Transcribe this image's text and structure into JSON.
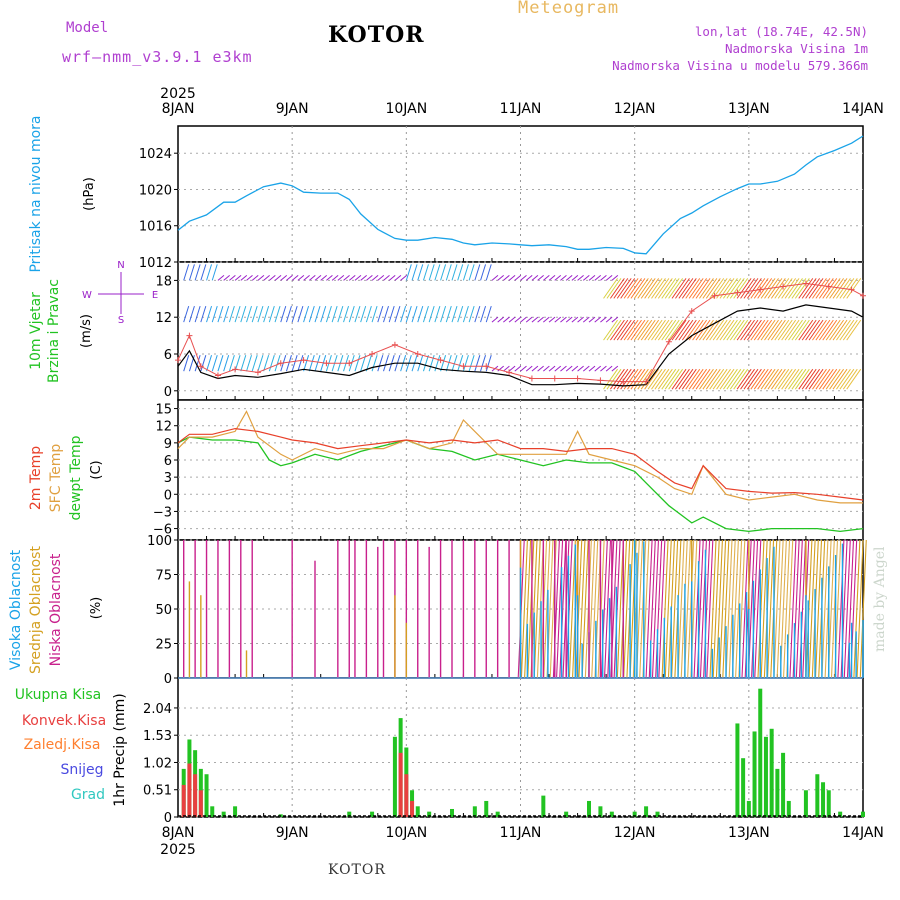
{
  "header": {
    "model_label": "Model",
    "model_name": "wrf—nmm_v3.9.1  e3km",
    "station": "KOTOR",
    "title": "Meteogram",
    "lonlat": "lon,lat (18.74E, 42.5N)",
    "elevation": "Nadmorska Visina 1m",
    "model_elevation": "Nadmorska Visina u modelu 579.366m",
    "bottom_label": "KOTOR",
    "watermark": "made by Angel"
  },
  "time_axis": {
    "year": "2025",
    "labels": [
      "8JAN",
      "9JAN",
      "10JAN",
      "11JAN",
      "12JAN",
      "13JAN",
      "14JAN"
    ]
  },
  "colors": {
    "pressure": "#1aa3e8",
    "temp2m": "#e8402a",
    "sfc": "#e0a040",
    "dewpt": "#22c322",
    "high_cloud": "#1aa3e8",
    "mid_cloud": "#d4a020",
    "low_cloud": "#c8208c",
    "total_precip": "#22c322",
    "conv_precip": "#e84040",
    "frozen_precip": "#ff8030",
    "snow": "#4a4ae0",
    "graupel": "#30c8c0",
    "wind_purple": "#9a20c8"
  },
  "chart_data": [
    {
      "type": "line",
      "title": "Pritisak na nivou mora",
      "ylabel": "(hPa)",
      "ylim": [
        1012,
        1027
      ],
      "yticks": [
        "1012",
        "1016",
        "1020",
        "1024"
      ],
      "series": [
        {
          "name": "Pritisak na nivou mora",
          "x": [
            0,
            0.1,
            0.25,
            0.4,
            0.5,
            0.6,
            0.75,
            0.9,
            1.0,
            1.1,
            1.25,
            1.4,
            1.5,
            1.6,
            1.75,
            1.9,
            2.0,
            2.1,
            2.25,
            2.4,
            2.5,
            2.6,
            2.75,
            2.9,
            3.0,
            3.1,
            3.25,
            3.4,
            3.5,
            3.6,
            3.75,
            3.9,
            4.0,
            4.1,
            4.25,
            4.4,
            4.5,
            4.6,
            4.75,
            4.9,
            5.0,
            5.1,
            5.25,
            5.4,
            5.5,
            5.6,
            5.75,
            5.9,
            6.0
          ],
          "values": [
            1015.5,
            1016.5,
            1017.2,
            1018.6,
            1018.6,
            1019.3,
            1020.3,
            1020.7,
            1020.4,
            1019.7,
            1019.6,
            1019.6,
            1018.9,
            1017.3,
            1015.6,
            1014.6,
            1014.4,
            1014.4,
            1014.7,
            1014.5,
            1014.1,
            1013.9,
            1014.1,
            1014.0,
            1013.9,
            1013.8,
            1013.9,
            1013.7,
            1013.4,
            1013.4,
            1013.6,
            1013.5,
            1013.0,
            1012.9,
            1015.1,
            1016.8,
            1017.4,
            1018.2,
            1019.2,
            1020.1,
            1020.6,
            1020.6,
            1020.9,
            1021.7,
            1022.7,
            1023.6,
            1024.3,
            1025.1,
            1025.9
          ]
        }
      ]
    },
    {
      "type": "line",
      "title": "10m Vjetar Brzina i Pravac",
      "ylabel": "(m/s)",
      "compass": {
        "n": "N",
        "s": "S",
        "e": "E",
        "w": "W"
      },
      "ylim": [
        -1.5,
        21
      ],
      "yticks": [
        "0",
        "6",
        "12",
        "18"
      ],
      "series": [
        {
          "name": "speed",
          "x": [
            0,
            0.1,
            0.2,
            0.35,
            0.5,
            0.7,
            0.9,
            1.1,
            1.3,
            1.5,
            1.7,
            1.9,
            2.1,
            2.3,
            2.5,
            2.7,
            2.9,
            3.1,
            3.3,
            3.5,
            3.7,
            3.9,
            4.1,
            4.3,
            4.5,
            4.7,
            4.9,
            5.1,
            5.3,
            5.5,
            5.7,
            5.9,
            6.0
          ],
          "values": [
            4,
            6.5,
            3,
            2,
            2.5,
            2.2,
            2.8,
            3.5,
            3,
            2.5,
            3.8,
            4.5,
            4.5,
            3.5,
            3.2,
            3,
            2.5,
            1,
            1,
            1.2,
            1.1,
            0.8,
            1,
            6,
            9,
            11,
            13,
            13.5,
            13,
            14,
            13.5,
            13,
            12
          ]
        },
        {
          "name": "gust",
          "x": [
            0,
            0.1,
            0.2,
            0.35,
            0.5,
            0.7,
            0.9,
            1.1,
            1.3,
            1.5,
            1.7,
            1.9,
            2.1,
            2.3,
            2.5,
            2.7,
            2.9,
            3.1,
            3.3,
            3.5,
            3.7,
            3.9,
            4.1,
            4.3,
            4.5,
            4.7,
            4.9,
            5.1,
            5.3,
            5.5,
            5.7,
            5.9,
            6.0
          ],
          "values": [
            5,
            9,
            4,
            2.5,
            3.5,
            3,
            4.5,
            5,
            4.5,
            4.5,
            6,
            7.5,
            6,
            5,
            4,
            4,
            3,
            2,
            2,
            2,
            1.7,
            1.5,
            1.5,
            8,
            13,
            15.5,
            16,
            16.5,
            17,
            17.5,
            17,
            16.5,
            15.5
          ]
        }
      ]
    },
    {
      "type": "line",
      "ylabel": "(C)",
      "ylim": [
        -8,
        16.5
      ],
      "yticks": [
        "−6",
        "−3",
        "0",
        "3",
        "6",
        "9",
        "12",
        "15"
      ],
      "legend": [
        "2m Temp",
        "SFC Temp",
        "dewpt Temp"
      ],
      "series": [
        {
          "name": "2m Temp",
          "x": [
            0,
            0.1,
            0.3,
            0.5,
            0.7,
            0.9,
            1.0,
            1.2,
            1.4,
            1.6,
            1.8,
            2.0,
            2.2,
            2.4,
            2.6,
            2.8,
            3.0,
            3.2,
            3.4,
            3.6,
            3.8,
            4.0,
            4.2,
            4.35,
            4.5,
            4.6,
            4.8,
            5.0,
            5.2,
            5.4,
            5.6,
            5.8,
            6.0
          ],
          "values": [
            9,
            10.5,
            10.5,
            11.5,
            11,
            10,
            9.5,
            9,
            8,
            8.5,
            9,
            9.5,
            9,
            9.5,
            9,
            9.5,
            8,
            8,
            7.5,
            8,
            8,
            7,
            4,
            2,
            1,
            5,
            1,
            0.5,
            0.2,
            0.3,
            0,
            -0.5,
            -1
          ]
        },
        {
          "name": "SFC Temp",
          "x": [
            0,
            0.1,
            0.3,
            0.5,
            0.6,
            0.7,
            0.9,
            1.0,
            1.2,
            1.4,
            1.6,
            1.8,
            2.0,
            2.2,
            2.4,
            2.5,
            2.6,
            2.8,
            3.0,
            3.2,
            3.4,
            3.5,
            3.6,
            3.8,
            4.0,
            4.2,
            4.35,
            4.5,
            4.6,
            4.8,
            5.0,
            5.2,
            5.4,
            5.6,
            5.8,
            6.0
          ],
          "values": [
            8,
            10,
            10,
            11,
            14.5,
            10,
            7,
            6,
            8,
            7,
            8,
            8,
            9.5,
            8,
            9,
            13,
            11,
            7,
            7,
            7,
            7,
            11,
            7,
            6,
            5,
            3,
            1,
            0,
            5,
            0,
            -1,
            -0.5,
            0,
            -1,
            -1.5,
            -1.5
          ]
        },
        {
          "name": "dewpt Temp",
          "x": [
            0,
            0.1,
            0.3,
            0.5,
            0.7,
            0.8,
            0.9,
            1.0,
            1.2,
            1.4,
            1.6,
            1.8,
            2.0,
            2.2,
            2.4,
            2.6,
            2.8,
            3.0,
            3.2,
            3.4,
            3.6,
            3.8,
            4.0,
            4.1,
            4.3,
            4.5,
            4.6,
            4.8,
            5.0,
            5.2,
            5.4,
            5.6,
            5.8,
            6.0
          ],
          "values": [
            9,
            10,
            9.5,
            9.5,
            9,
            6,
            5,
            5.5,
            7,
            6,
            7.5,
            8.5,
            9.5,
            8,
            7.5,
            6,
            7,
            6,
            5,
            6,
            5.5,
            5.5,
            4,
            2,
            -2,
            -5,
            -4,
            -6,
            -6.5,
            -6,
            -6,
            -6,
            -6.5,
            -6
          ]
        }
      ]
    },
    {
      "type": "bar",
      "ylabel": "(%)",
      "ylim": [
        0,
        100
      ],
      "yticks": [
        "0",
        "25",
        "50",
        "75",
        "100"
      ],
      "legend": [
        "Visoka Oblacnost",
        "Srednja Oblacnost",
        "Niska Oblacnost"
      ],
      "series": [
        {
          "name": "Niska Oblacnost",
          "x": [
            0.05,
            0.15,
            0.25,
            0.35,
            0.45,
            0.55,
            0.65,
            1.0,
            1.2,
            1.4,
            1.5,
            1.55,
            1.65,
            1.75,
            1.8,
            1.9,
            2.0,
            2.1,
            2.2,
            2.3,
            2.4,
            2.5,
            2.6,
            2.7,
            2.8,
            2.9,
            3.0,
            3.1,
            3.2,
            3.3,
            3.4,
            3.5,
            3.6,
            3.7,
            3.8,
            3.9
          ],
          "values": [
            100,
            100,
            100,
            100,
            100,
            100,
            100,
            100,
            85,
            100,
            100,
            100,
            100,
            95,
            100,
            100,
            100,
            100,
            95,
            100,
            100,
            100,
            100,
            100,
            100,
            100,
            100,
            100,
            100,
            100,
            100,
            100,
            100,
            100,
            100,
            100
          ]
        },
        {
          "name": "Srednja Oblacnost",
          "x": [
            0.1,
            0.2,
            0.6,
            1.9,
            2.0,
            3.0,
            3.5,
            4.0,
            4.5,
            5.0,
            5.5
          ],
          "values": [
            70,
            60,
            20,
            60,
            40,
            100,
            100,
            100,
            100,
            100,
            100
          ]
        },
        {
          "name": "Visoka Oblacnost",
          "x": [
            3.0,
            3.5,
            4.0,
            4.5,
            5.0,
            5.5,
            5.9
          ],
          "values": [
            80,
            60,
            100,
            70,
            50,
            60,
            40
          ]
        }
      ]
    },
    {
      "type": "bar",
      "ylabel": "1hr Precip (mm)",
      "ylim": [
        0,
        2.6
      ],
      "yticks": [
        "0",
        "0.51",
        "1.02",
        "1.53",
        "2.04"
      ],
      "legend": [
        "Ukupna Kisa",
        "Konvek.Kisa",
        "Zaledj.Kisa",
        "Snijeg",
        "Grad"
      ],
      "series": [
        {
          "name": "Ukupna Kisa",
          "x": [
            0.05,
            0.1,
            0.15,
            0.2,
            0.25,
            0.3,
            0.4,
            0.5,
            0.9,
            1.5,
            1.7,
            1.9,
            1.95,
            2.0,
            2.05,
            2.1,
            2.2,
            2.4,
            2.6,
            2.7,
            2.8,
            3.2,
            3.4,
            3.6,
            3.7,
            3.8,
            4.0,
            4.1,
            4.2,
            4.9,
            4.95,
            5.0,
            5.05,
            5.1,
            5.15,
            5.2,
            5.25,
            5.3,
            5.35,
            5.5,
            5.6,
            5.65,
            5.7,
            5.8,
            6.0
          ],
          "values": [
            0.9,
            1.45,
            1.25,
            0.9,
            0.8,
            0.2,
            0.1,
            0.2,
            0.05,
            0.1,
            0.1,
            1.5,
            1.85,
            1.3,
            0.5,
            0.2,
            0.1,
            0.15,
            0.2,
            0.3,
            0.1,
            0.4,
            0.1,
            0.3,
            0.2,
            0.1,
            0.1,
            0.2,
            0.1,
            1.75,
            1.1,
            0.3,
            1.6,
            2.4,
            1.5,
            1.65,
            0.9,
            1.2,
            0.3,
            0.5,
            0.8,
            0.65,
            0.5,
            0.1,
            0.1
          ]
        },
        {
          "name": "Konvek.Kisa",
          "x": [
            0.05,
            0.1,
            0.15,
            0.2,
            1.95,
            2.0,
            2.05
          ],
          "values": [
            0.6,
            1.0,
            0.8,
            0.5,
            1.2,
            0.8,
            0.3
          ]
        }
      ]
    }
  ]
}
